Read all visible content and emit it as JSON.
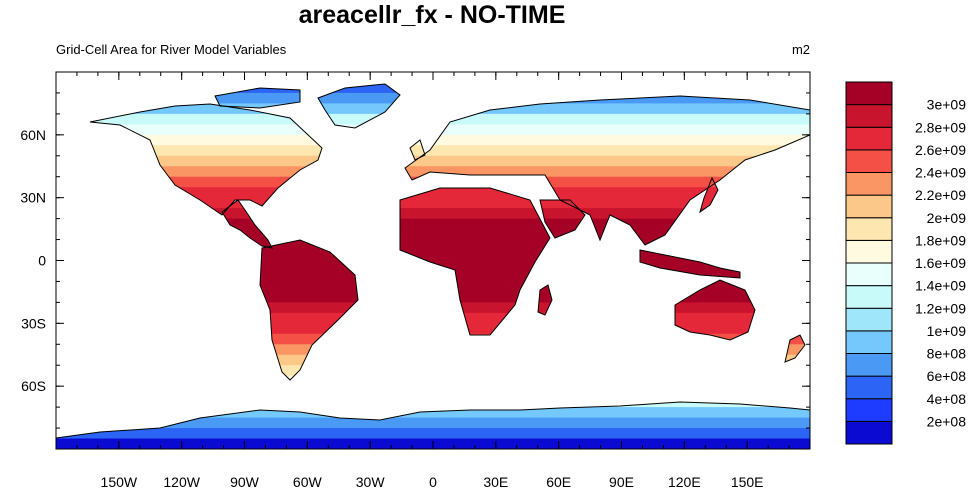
{
  "chart_data": {
    "type": "heatmap",
    "title": "areacellr_fx - NO-TIME",
    "subtitle": "Grid-Cell Area for River Model Variables",
    "units": "m2",
    "x_ticks": [
      {
        "lon": -150,
        "label": "150W"
      },
      {
        "lon": -120,
        "label": "120W"
      },
      {
        "lon": -90,
        "label": "90W"
      },
      {
        "lon": -60,
        "label": "60W"
      },
      {
        "lon": -30,
        "label": "30W"
      },
      {
        "lon": 0,
        "label": "0"
      },
      {
        "lon": 30,
        "label": "30E"
      },
      {
        "lon": 60,
        "label": "60E"
      },
      {
        "lon": 90,
        "label": "90E"
      },
      {
        "lon": 120,
        "label": "120E"
      },
      {
        "lon": 150,
        "label": "150E"
      }
    ],
    "y_ticks": [
      {
        "lat": 60,
        "label": "60N"
      },
      {
        "lat": 30,
        "label": "30N"
      },
      {
        "lat": 0,
        "label": "0"
      },
      {
        "lat": -30,
        "label": "30S"
      },
      {
        "lat": -60,
        "label": "60S"
      }
    ],
    "xlim": [
      -180,
      180
    ],
    "ylim": [
      -90,
      90
    ],
    "colorbar": {
      "levels": [
        200000000,
        400000000,
        600000000,
        800000000,
        1000000000,
        1200000000,
        1400000000,
        1600000000,
        1800000000,
        2000000000,
        2200000000,
        2400000000,
        2600000000,
        2800000000,
        3000000000
      ],
      "labels": [
        "2e+08",
        "4e+08",
        "6e+08",
        "8e+08",
        "1e+09",
        "1.2e+09",
        "1.4e+09",
        "1.6e+09",
        "1.8e+09",
        "2e+09",
        "2.2e+09",
        "2.4e+09",
        "2.6e+09",
        "2.8e+09",
        "3e+09"
      ],
      "colors": [
        "#0a0ad2",
        "#1e3cff",
        "#2c64f5",
        "#4a9af5",
        "#74c8fb",
        "#a0e6fa",
        "#c8fafa",
        "#e8fffc",
        "#fffae0",
        "#fde6b0",
        "#fcc88a",
        "#fa9664",
        "#f55046",
        "#e4283a",
        "#c8142d",
        "#a50026"
      ]
    }
  }
}
